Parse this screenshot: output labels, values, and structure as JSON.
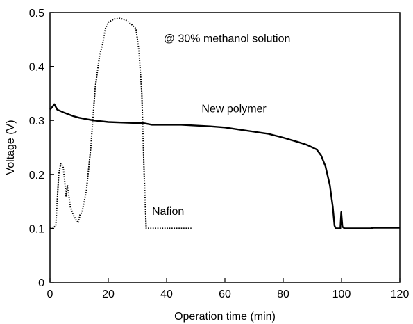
{
  "chart_data": {
    "type": "line",
    "title": "",
    "annotation": "@ 30% methanol solution",
    "xlabel": "Operation time (min)",
    "ylabel": "Voltage (V)",
    "xlim": [
      0,
      120
    ],
    "ylim": [
      0,
      0.5
    ],
    "x_ticks": [
      0,
      20,
      40,
      60,
      80,
      100,
      120
    ],
    "y_ticks": [
      0,
      0.1,
      0.2,
      0.3,
      0.4,
      0.5
    ],
    "x_tick_labels": [
      "0",
      "20",
      "40",
      "60",
      "80",
      "100",
      "120"
    ],
    "y_tick_labels": [
      "0",
      "0.1",
      "0.2",
      "0.3",
      "0.4",
      "0.5"
    ],
    "grid": false,
    "series": [
      {
        "name": "New polymer",
        "style": "solid",
        "color": "#000000",
        "points": [
          [
            0,
            0.32
          ],
          [
            0.8,
            0.325
          ],
          [
            1.5,
            0.33
          ],
          [
            2.5,
            0.32
          ],
          [
            5,
            0.314
          ],
          [
            8,
            0.308
          ],
          [
            10,
            0.305
          ],
          [
            12,
            0.303
          ],
          [
            15,
            0.3
          ],
          [
            20,
            0.297
          ],
          [
            25,
            0.296
          ],
          [
            30,
            0.295
          ],
          [
            32,
            0.295
          ],
          [
            35,
            0.292
          ],
          [
            45,
            0.292
          ],
          [
            55,
            0.289
          ],
          [
            60,
            0.287
          ],
          [
            65,
            0.283
          ],
          [
            70,
            0.279
          ],
          [
            75,
            0.275
          ],
          [
            80,
            0.268
          ],
          [
            85,
            0.26
          ],
          [
            88,
            0.255
          ],
          [
            90,
            0.25
          ],
          [
            91.5,
            0.246
          ],
          [
            93,
            0.235
          ],
          [
            94.5,
            0.215
          ],
          [
            96,
            0.18
          ],
          [
            97,
            0.14
          ],
          [
            97.6,
            0.105
          ],
          [
            98,
            0.1
          ],
          [
            99.6,
            0.1
          ],
          [
            99.9,
            0.13
          ],
          [
            100.3,
            0.103
          ],
          [
            101,
            0.1
          ],
          [
            110,
            0.1
          ],
          [
            111,
            0.101
          ],
          [
            120,
            0.101
          ]
        ]
      },
      {
        "name": "Nafion",
        "style": "dotted",
        "color": "#000000",
        "points": [
          [
            0,
            0.1
          ],
          [
            1,
            0.1
          ],
          [
            2,
            0.105
          ],
          [
            3,
            0.2
          ],
          [
            3.7,
            0.22
          ],
          [
            4.5,
            0.215
          ],
          [
            5,
            0.19
          ],
          [
            5.5,
            0.16
          ],
          [
            6,
            0.18
          ],
          [
            7,
            0.14
          ],
          [
            8,
            0.125
          ],
          [
            9,
            0.115
          ],
          [
            9.7,
            0.11
          ],
          [
            10.3,
            0.125
          ],
          [
            11,
            0.13
          ],
          [
            12.5,
            0.17
          ],
          [
            14,
            0.25
          ],
          [
            15.5,
            0.36
          ],
          [
            17,
            0.42
          ],
          [
            17.5,
            0.43
          ],
          [
            18,
            0.44
          ],
          [
            19,
            0.47
          ],
          [
            20,
            0.482
          ],
          [
            22,
            0.488
          ],
          [
            24,
            0.489
          ],
          [
            26,
            0.486
          ],
          [
            28,
            0.478
          ],
          [
            29.5,
            0.47
          ],
          [
            30.5,
            0.43
          ],
          [
            31.5,
            0.35
          ],
          [
            32.3,
            0.2
          ],
          [
            33,
            0.1
          ],
          [
            35,
            0.1
          ],
          [
            40,
            0.1
          ],
          [
            48.5,
            0.1
          ]
        ]
      }
    ],
    "series_labels": [
      {
        "text": "New polymer",
        "x": 52,
        "y": 0.315
      },
      {
        "text": "Nafion",
        "x": 35,
        "y": 0.125
      }
    ]
  }
}
